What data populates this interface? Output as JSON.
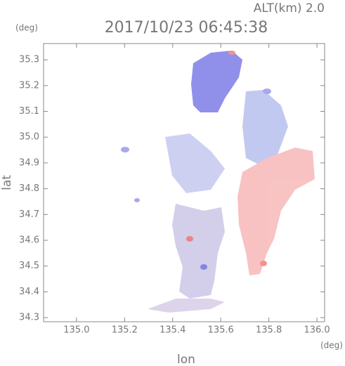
{
  "chart_data": {
    "type": "radar-image",
    "title": "2017/10/23 06:45:38",
    "subtitle": "ALT(km) 2.0",
    "x_label": "lon",
    "y_label": "lat",
    "x_unit": "(deg)",
    "y_unit": "(deg)",
    "xlim": [
      134.863,
      136.032
    ],
    "ylim": [
      34.284,
      35.363
    ],
    "xticks": [
      {
        "value": 135.0,
        "label": "135.0"
      },
      135.2,
      135.4,
      135.6,
      135.8,
      {
        "value": 136.0,
        "label": "136.0"
      }
    ],
    "yticks": [
      34.3,
      34.4,
      34.5,
      34.6,
      34.7,
      34.8,
      34.9,
      {
        "value": 35.0,
        "label": "35.0"
      },
      35.1,
      35.2,
      35.3
    ]
  }
}
